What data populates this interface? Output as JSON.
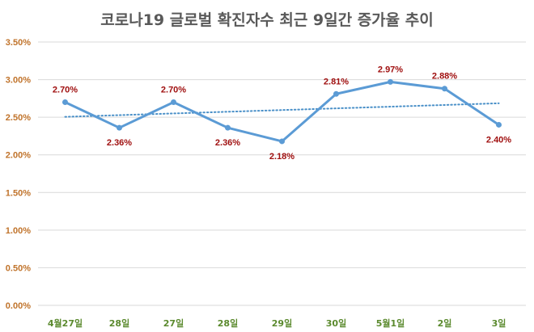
{
  "chart_data": {
    "type": "line",
    "title": "코로나19 글로벌 확진자수 최근 9일간 증가율 추이",
    "categories": [
      "4월27일",
      "28일",
      "27일",
      "28일",
      "29일",
      "30일",
      "5월1일",
      "2일",
      "3일"
    ],
    "series": [
      {
        "values": [
          2.7,
          2.36,
          2.7,
          2.36,
          2.18,
          2.81,
          2.97,
          2.88,
          2.4
        ],
        "labels": [
          "2.70%",
          "2.36%",
          "2.70%",
          "2.36%",
          "2.18%",
          "2.81%",
          "2.97%",
          "2.88%",
          "2.40%"
        ]
      }
    ],
    "trendline": {
      "type": "linear",
      "style": "dotted"
    },
    "xlabel": "",
    "ylabel": "",
    "ylim": [
      0,
      3.5
    ],
    "yticks": [
      "0.00%",
      "0.50%",
      "1.00%",
      "1.50%",
      "2.00%",
      "2.50%",
      "3.00%",
      "3.50%"
    ],
    "grid": true,
    "legend": "none",
    "colors": {
      "line": "#5b9bd5",
      "trend": "#4a90c8",
      "grid": "#d9d9d9",
      "ytick": "#c0732b",
      "xtick": "#5b8a2e",
      "data_label": "#a01010",
      "title": "#595959"
    }
  }
}
